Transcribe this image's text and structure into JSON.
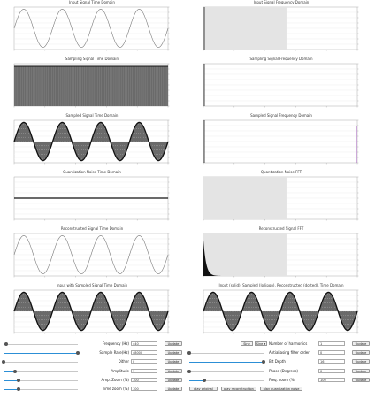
{
  "panels": [
    {
      "title": "Input Signal Time Domain",
      "kind": "time-sine"
    },
    {
      "title": "Input Signal Frequency Domain",
      "kind": "freq-spike"
    },
    {
      "title": "Sampling Signal Time Domain",
      "kind": "time-dense"
    },
    {
      "title": "Sampling Signal Frequency Domain",
      "kind": "freq-plain"
    },
    {
      "title": "Sampled Signal Time Domain",
      "kind": "time-sampled"
    },
    {
      "title": "Sampled Signal Frequency Domain",
      "kind": "freq-sampled"
    },
    {
      "title": "Quantization Noise Time Domain",
      "kind": "time-flat"
    },
    {
      "title": "Quantization Noise FFT",
      "kind": "freq-empty"
    },
    {
      "title": "Reconstructed Signal Time Domain",
      "kind": "time-sine"
    },
    {
      "title": "Reconstructed Signal FFT",
      "kind": "freq-decay"
    },
    {
      "title": "Input with Sampled Signal Time Domain",
      "kind": "time-sampled"
    },
    {
      "title": "Input (solid), Sampled (lollipop), Reconstructed (dotted), Time Domain",
      "kind": "time-sampled"
    }
  ],
  "colors": {
    "line": "#7a7a7a",
    "fill": "#6a6a6a",
    "shade": "#e4e4e4",
    "accent": "#2c8fd6",
    "marker": "#b25bd0"
  },
  "controls": {
    "frequency": {
      "label": "Frequency (Hz)",
      "value": "440",
      "level": 0.04
    },
    "sample_rate": {
      "label": "Sample Rate(Hz)",
      "value": "48000",
      "level": 1.0
    },
    "dither": {
      "label": "Dither",
      "value": "0",
      "level": 0.0
    },
    "amplitude": {
      "label": "Amplitude",
      "value": "1",
      "level": 0.16
    },
    "amp_zoom": {
      "label": "Amp. Zoom (%)",
      "value": "100",
      "level": 0.2
    },
    "time_zoom": {
      "label": "Time zoom (%)",
      "value": "100",
      "level": 0.2
    },
    "harmonics": {
      "label": "Number of harmonics",
      "value": "1",
      "selected": "Sine",
      "dropdown": "Sine"
    },
    "filter_order": {
      "label": "Antialiasing filter order",
      "value": "0",
      "level": 0.0
    },
    "bit_depth": {
      "label": "Bit Depth",
      "value": "16",
      "level": 1.0
    },
    "phase": {
      "label": "Phase (Degrees)",
      "value": "0",
      "level": 0.0
    },
    "freq_zoom": {
      "label": "Freq. zoom (%)",
      "value": "100",
      "level": 0.2
    },
    "update_label": "Update",
    "play_original": "play original",
    "play_reconstruction": "play reconstruction",
    "play_quantization": "play quantization noise"
  }
}
